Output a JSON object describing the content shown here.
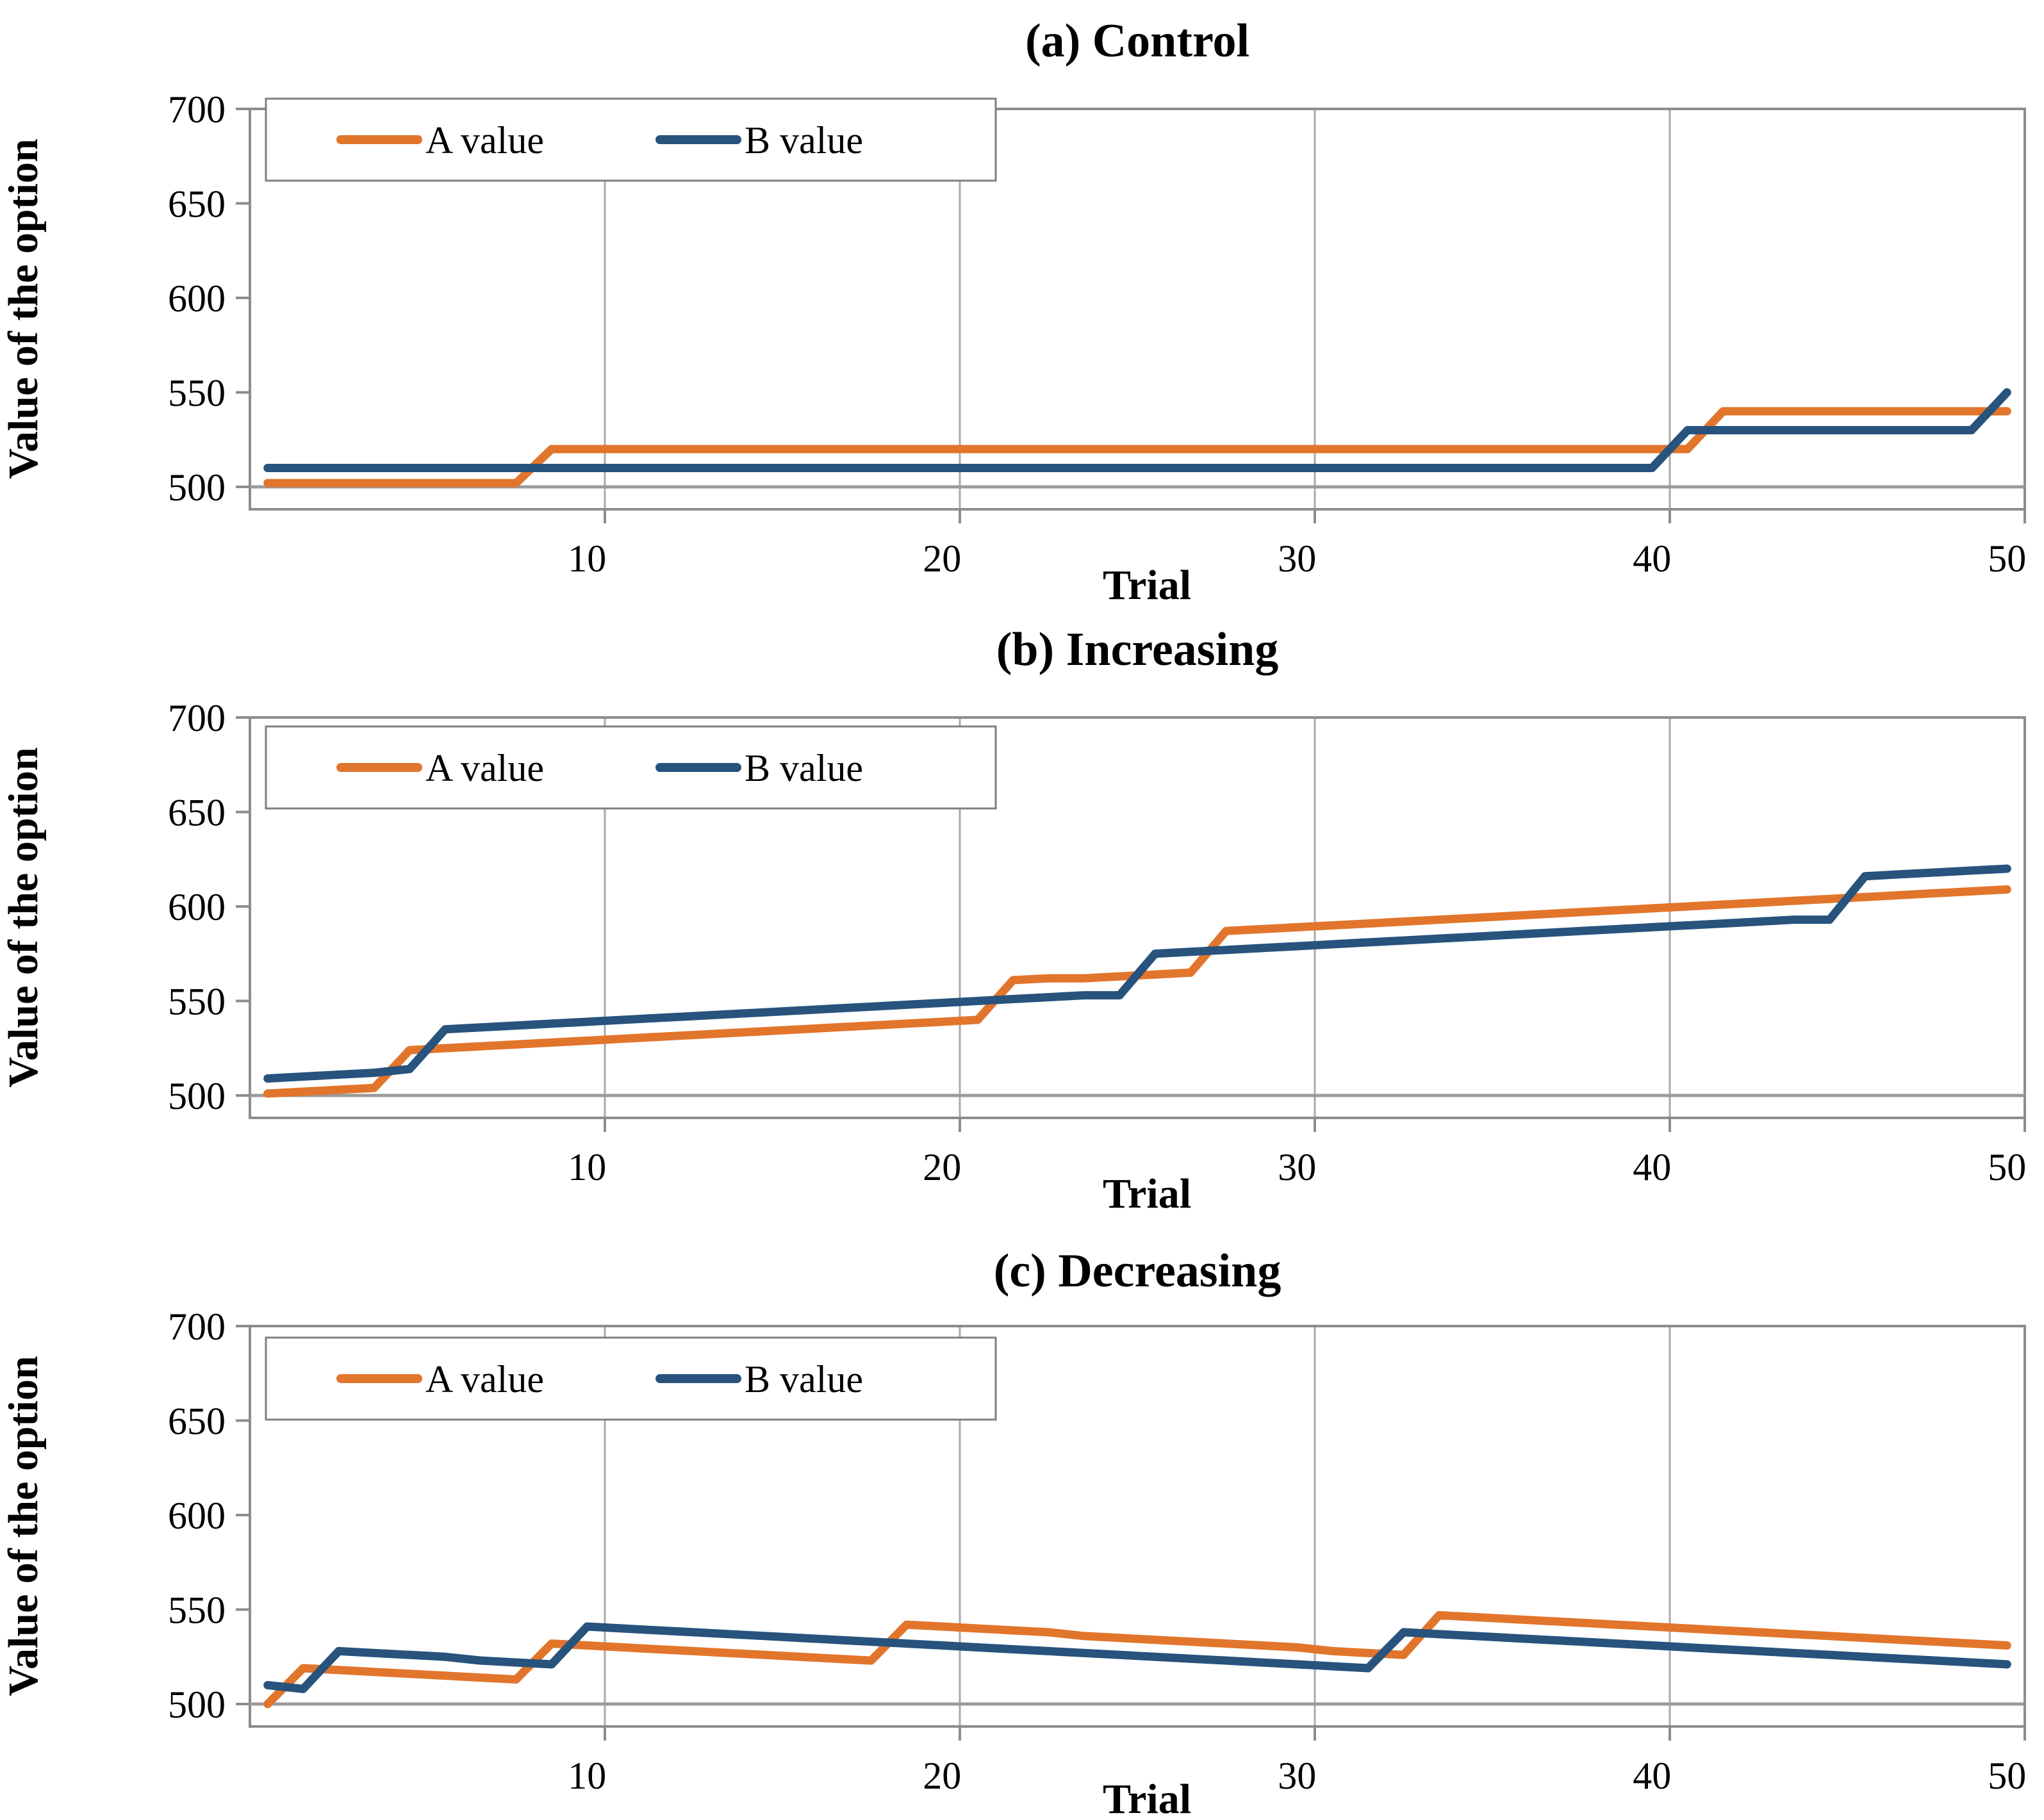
{
  "figure": {
    "description_texts": {
      "panel_a_title": "(a) Control",
      "panel_b_title": "(b) Increasing",
      "panel_c_title": "(c) Decreasing",
      "y_axis_label": "Value of the option",
      "x_axis_label": "Trial",
      "legend_a_label": "A value",
      "legend_b_label": "B value"
    }
  },
  "colors": {
    "series_a": "#E2752C",
    "series_b": "#27537D",
    "gridline": "#A9A9A9",
    "plot_border": "#8C8C8C",
    "axis_500_line": "#9B9B9B",
    "legend_border": "#7F7F7F",
    "text": "#000000",
    "background": "#FFFFFF"
  },
  "chart_data": [
    {
      "type": "line",
      "title": "(a) Control",
      "xlabel": "Trial",
      "ylabel": "Value of the option",
      "x_min": 1,
      "x_max": 50,
      "x_step": 1,
      "x_ticks": [
        10,
        20,
        30,
        40,
        50
      ],
      "y_ticks": [
        500,
        550,
        600,
        650,
        700
      ],
      "ylim": [
        490,
        700
      ],
      "grid": "vertical-only",
      "legend_position": "top-left",
      "series": [
        {
          "name": "A value",
          "color": "#E2752C",
          "values": [
            502,
            502,
            502,
            502,
            502,
            502,
            502,
            502,
            520,
            520,
            520,
            520,
            520,
            520,
            520,
            520,
            520,
            520,
            520,
            520,
            520,
            520,
            520,
            520,
            520,
            520,
            520,
            520,
            520,
            520,
            520,
            520,
            520,
            520,
            520,
            520,
            520,
            520,
            520,
            520,
            520,
            540,
            540,
            540,
            540,
            540,
            540,
            540,
            540,
            540
          ]
        },
        {
          "name": "B value",
          "color": "#27537D",
          "values": [
            510,
            510,
            510,
            510,
            510,
            510,
            510,
            510,
            510,
            510,
            510,
            510,
            510,
            510,
            510,
            510,
            510,
            510,
            510,
            510,
            510,
            510,
            510,
            510,
            510,
            510,
            510,
            510,
            510,
            510,
            510,
            510,
            510,
            510,
            510,
            510,
            510,
            510,
            510,
            510,
            530,
            530,
            530,
            530,
            530,
            530,
            530,
            530,
            530,
            550
          ]
        }
      ]
    },
    {
      "type": "line",
      "title": "(b) Increasing",
      "xlabel": "Trial",
      "ylabel": "Value of the option",
      "x_min": 1,
      "x_max": 50,
      "x_step": 1,
      "x_ticks": [
        10,
        20,
        30,
        40,
        50
      ],
      "y_ticks": [
        500,
        550,
        600,
        650,
        700
      ],
      "ylim": [
        490,
        700
      ],
      "grid": "vertical-only",
      "legend_position": "top-left",
      "series": [
        {
          "name": "A value",
          "color": "#E2752C",
          "values": [
            501,
            502,
            503,
            504,
            524,
            525,
            526,
            527,
            528,
            529,
            530,
            531,
            532,
            533,
            534,
            535,
            536,
            537,
            538,
            539,
            540,
            561,
            562,
            562,
            563,
            564,
            565,
            587,
            588,
            589,
            590,
            591,
            592,
            593,
            594,
            595,
            596,
            597,
            598,
            599,
            600,
            601,
            602,
            603,
            604,
            605,
            606,
            607,
            608,
            609
          ]
        },
        {
          "name": "B value",
          "color": "#27537D",
          "values": [
            509,
            510,
            511,
            512,
            514,
            535,
            536,
            537,
            538,
            539,
            540,
            541,
            542,
            543,
            544,
            545,
            546,
            547,
            548,
            549,
            550,
            551,
            552,
            553,
            553,
            575,
            576,
            577,
            578,
            579,
            580,
            581,
            582,
            583,
            584,
            585,
            586,
            587,
            588,
            589,
            590,
            591,
            592,
            593,
            593,
            616,
            617,
            618,
            619,
            620
          ]
        }
      ]
    },
    {
      "type": "line",
      "title": "(c) Decreasing",
      "xlabel": "Trial",
      "ylabel": "Value of the option",
      "x_min": 1,
      "x_max": 50,
      "x_step": 1,
      "x_ticks": [
        10,
        20,
        30,
        40,
        50
      ],
      "y_ticks": [
        500,
        550,
        600,
        650,
        700
      ],
      "ylim": [
        490,
        700
      ],
      "grid": "vertical-only",
      "legend_position": "top-left",
      "series": [
        {
          "name": "A value",
          "color": "#E2752C",
          "values": [
            500,
            519,
            518,
            517,
            516,
            515,
            514,
            513,
            532,
            531,
            530,
            529,
            528,
            527,
            526,
            525,
            524,
            523,
            542,
            541,
            540,
            539,
            538,
            536,
            535,
            534,
            533,
            532,
            531,
            530,
            528,
            527,
            526,
            547,
            546,
            545,
            544,
            543,
            542,
            541,
            540,
            539,
            538,
            537,
            536,
            535,
            534,
            533,
            532,
            531
          ]
        },
        {
          "name": "B value",
          "color": "#27537D",
          "values": [
            510,
            508,
            528,
            527,
            526,
            525,
            523,
            522,
            521,
            541,
            540,
            539,
            538,
            537,
            536,
            535,
            534,
            533,
            532,
            531,
            530,
            529,
            528,
            527,
            526,
            525,
            524,
            523,
            522,
            521,
            520,
            519,
            538,
            537,
            536,
            535,
            534,
            533,
            532,
            531,
            530,
            529,
            528,
            527,
            526,
            525,
            524,
            523,
            522,
            521
          ]
        }
      ]
    }
  ]
}
